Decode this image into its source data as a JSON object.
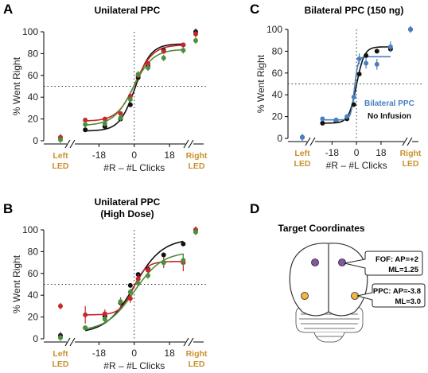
{
  "panels": {
    "A": {
      "letter": "A",
      "title": "Unilateral PPC"
    },
    "B": {
      "letter": "B",
      "title_line1": "Unilateral PPC",
      "title_line2": "(High Dose)"
    },
    "C": {
      "letter": "C",
      "title": "Bilateral PPC (150 ng)"
    },
    "D": {
      "letter": "D",
      "title": "Target Coordinates"
    }
  },
  "colors": {
    "black": "#111111",
    "red": "#c8262c",
    "green": "#4d8f3c",
    "blue": "#4a7fc1",
    "led": "#c8912e",
    "purple": "#8655a6",
    "orange": "#f4b63f"
  },
  "axis_text": {
    "ylabel": "% Went Right",
    "xlabel": "#R – #L Clicks",
    "left_led_1": "Left",
    "left_led_2": "LED",
    "right_led_1": "Right",
    "right_led_2": "LED"
  },
  "legend_C": {
    "bilateral": "Bilateral PPC",
    "no_infusion": "No Infusion"
  },
  "coordinates": {
    "fof_line1": "FOF: AP=+2",
    "fof_line2": "ML=1.25",
    "ppc_line1": "PPC: AP=-3.8",
    "ppc_line2": "ML=3.0"
  },
  "chart_data": [
    {
      "panel": "A",
      "type": "scatter",
      "title": "Unilateral PPC",
      "xlabel": "#R – #L Clicks",
      "ylabel": "% Went Right",
      "xlim": [
        -34,
        35
      ],
      "ylim": [
        0,
        100
      ],
      "xticks": [
        -18,
        0,
        18
      ],
      "yticks": [
        0,
        20,
        40,
        60,
        80,
        100
      ],
      "reference_lines": {
        "x": 0,
        "y": 50
      },
      "series": [
        {
          "color": "black",
          "x": [
            -25,
            -15,
            -7,
            -2,
            2,
            7,
            15,
            25
          ],
          "y": [
            10,
            13,
            20,
            33,
            58,
            69,
            83,
            88
          ],
          "err": [
            2,
            2,
            2,
            2,
            2,
            2,
            2,
            2
          ],
          "left_led": 3,
          "right_led": 100,
          "fit": {
            "lo": 9,
            "hi": 89,
            "x0": 0.5,
            "k": 0.25
          }
        },
        {
          "color": "red",
          "x": [
            -25,
            -15,
            -7,
            -2,
            2,
            7,
            15,
            25
          ],
          "y": [
            19,
            20,
            25,
            41,
            60,
            71,
            82,
            88
          ],
          "err": [
            2,
            2,
            2,
            2,
            2,
            2,
            2,
            2
          ],
          "left_led": 3,
          "right_led": 98,
          "fit": {
            "lo": 18,
            "hi": 88,
            "x0": 0.5,
            "k": 0.22
          }
        },
        {
          "color": "green",
          "x": [
            -25,
            -15,
            -7,
            -2,
            2,
            7,
            15,
            25
          ],
          "y": [
            15,
            16,
            21,
            38,
            61,
            67,
            76,
            83
          ],
          "err": [
            3,
            3,
            3,
            3,
            3,
            3,
            3,
            3
          ],
          "left_led": 1,
          "right_led": 92,
          "fit": {
            "lo": 14,
            "hi": 84,
            "x0": -0.5,
            "k": 0.2
          }
        }
      ]
    },
    {
      "panel": "B",
      "type": "scatter",
      "title": "Unilateral PPC (High Dose)",
      "xlabel": "#R – #L Clicks",
      "ylabel": "% Went Right",
      "xlim": [
        -34,
        35
      ],
      "ylim": [
        0,
        100
      ],
      "xticks": [
        -18,
        0,
        18
      ],
      "yticks": [
        0,
        20,
        40,
        60,
        80,
        100
      ],
      "reference_lines": {
        "x": 0,
        "y": 50
      },
      "series": [
        {
          "color": "black",
          "x": [
            -25,
            -15,
            -7,
            -2,
            2,
            7,
            15,
            25
          ],
          "y": [
            10,
            21,
            33,
            49,
            59,
            64,
            77,
            87
          ],
          "err": [
            2,
            2,
            2,
            2,
            2,
            2,
            2,
            2
          ],
          "left_led": 3,
          "right_led": 100,
          "fit": {
            "lo": 5,
            "hi": 92,
            "x0": 0,
            "k": 0.14
          }
        },
        {
          "color": "red",
          "x": [
            -25,
            -15,
            -7,
            -2,
            2,
            7,
            15,
            25
          ],
          "y": [
            22,
            23,
            34,
            37,
            55,
            63,
            70,
            70
          ],
          "err": [
            8,
            4,
            4,
            4,
            4,
            4,
            5,
            8
          ],
          "left_led": 30,
          "right_led": 100,
          "fit": {
            "lo": 22,
            "hi": 71,
            "x0": -0.5,
            "k": 0.3
          }
        },
        {
          "color": "green",
          "x": [
            -25,
            -15,
            -7,
            -2,
            2,
            7,
            15,
            25
          ],
          "y": [
            10,
            18,
            34,
            43,
            51,
            58,
            70,
            72
          ],
          "err": [
            2,
            3,
            3,
            3,
            3,
            3,
            4,
            5
          ],
          "left_led": 1,
          "right_led": 98,
          "fit": {
            "lo": 7,
            "hi": 80,
            "x0": 0,
            "k": 0.14
          }
        }
      ]
    },
    {
      "panel": "C",
      "type": "scatter",
      "title": "Bilateral PPC (150 ng)",
      "xlabel": "#R – #L Clicks",
      "ylabel": "% Went Right",
      "xlim": [
        -34,
        35
      ],
      "ylim": [
        0,
        100
      ],
      "xticks": [
        -18,
        0,
        18
      ],
      "yticks": [
        0,
        20,
        40,
        60,
        80,
        100
      ],
      "reference_lines": {
        "x": 0,
        "y": 50
      },
      "series": [
        {
          "name": "No Infusion",
          "color": "black",
          "x": [
            -25,
            -15,
            -7,
            -2,
            2,
            7,
            15,
            25
          ],
          "y": [
            14,
            16,
            18,
            31,
            59,
            76,
            80,
            82
          ],
          "err": [
            1,
            1,
            1,
            1,
            1,
            1,
            1,
            1
          ],
          "left_led": 1,
          "right_led": 100,
          "fit": {
            "lo": 14,
            "hi": 84,
            "x0": 0,
            "k": 0.35
          }
        },
        {
          "name": "Bilateral PPC",
          "color": "blue",
          "x": [
            -25,
            -15,
            -7,
            -2,
            2,
            7,
            15,
            25
          ],
          "y": [
            18,
            17,
            20,
            38,
            73,
            69,
            68,
            84
          ],
          "err": [
            2,
            2,
            2,
            4,
            5,
            5,
            5,
            5
          ],
          "left_led": 1,
          "right_led": 100,
          "fit": {
            "lo": 17,
            "hi": 75,
            "x0": -1.5,
            "k": 0.75
          }
        }
      ]
    }
  ]
}
